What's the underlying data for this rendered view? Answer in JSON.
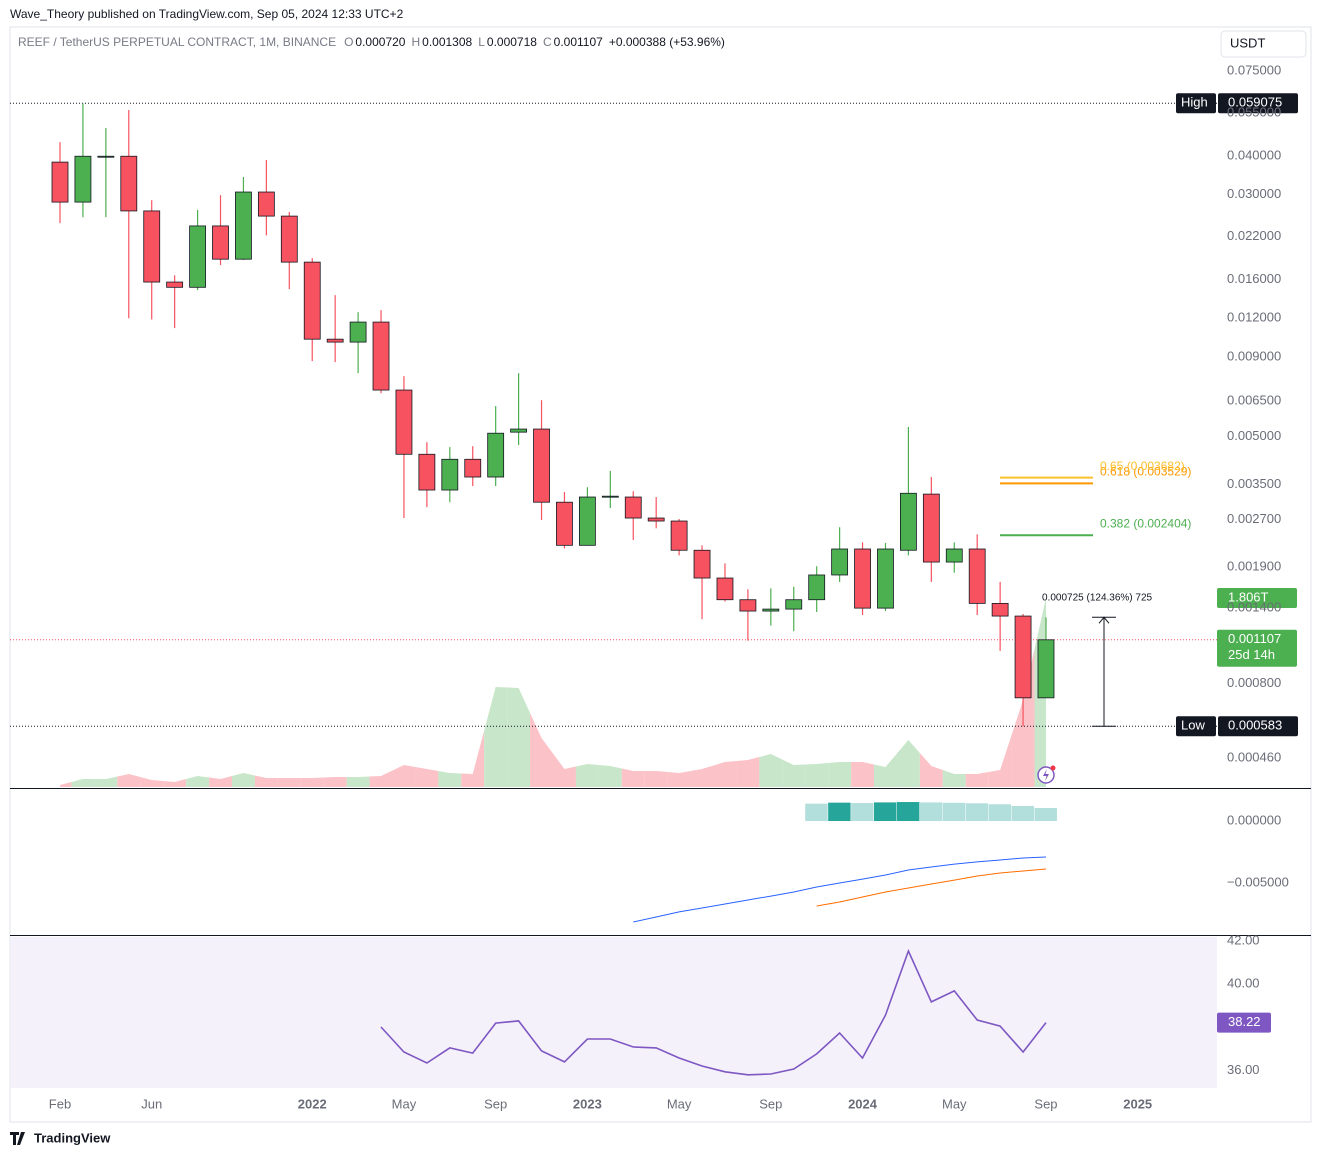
{
  "header": {
    "publisher": "Wave_Theory published on TradingView.com, Sep 05, 2024 12:33 UTC+2",
    "currency_button": "USDT",
    "footer_logo": "TradingView"
  },
  "chart_data": [
    {
      "type": "candlestick",
      "title": "REEF / TetherUS PERPETUAL CONTRACT, 1M, BINANCE",
      "legend_ohlc": [
        {
          "key": "O",
          "label": "0.000720"
        },
        {
          "key": "H",
          "label": "0.001308"
        },
        {
          "key": "L",
          "label": "0.000718"
        },
        {
          "key": "C",
          "label": "0.001107"
        }
      ],
      "legend_change": "+0.000388 (+53.96%)",
      "x": [
        "2021-02",
        "2021-03",
        "2021-04",
        "2021-05",
        "2021-06",
        "2021-07",
        "2021-08",
        "2021-09",
        "2021-10",
        "2021-11",
        "2021-12",
        "2022-01",
        "2022-02",
        "2022-03",
        "2022-04",
        "2022-05",
        "2022-06",
        "2022-07",
        "2022-08",
        "2022-09",
        "2022-10",
        "2022-11",
        "2022-12",
        "2023-01",
        "2023-02",
        "2023-03",
        "2023-04",
        "2023-05",
        "2023-06",
        "2023-07",
        "2023-08",
        "2023-09",
        "2023-10",
        "2023-11",
        "2023-12",
        "2024-01",
        "2024-02",
        "2024-03",
        "2024-04",
        "2024-05",
        "2024-06",
        "2024-07",
        "2024-08",
        "2024-09"
      ],
      "open": [
        0.0382,
        0.0284,
        0.0399,
        0.0399,
        0.0266,
        0.0157,
        0.0151,
        0.0238,
        0.0186,
        0.0306,
        0.0256,
        0.0182,
        0.01028,
        0.01006,
        0.01167,
        0.00705,
        0.00438,
        0.00336,
        0.00422,
        0.0037,
        0.00516,
        0.00528,
        0.00307,
        0.00223,
        0.00321,
        0.00319,
        0.00273,
        0.00267,
        0.00215,
        0.00175,
        0.00149,
        0.00137,
        0.00139,
        0.00149,
        0.00179,
        0.00217,
        0.0014,
        0.00215,
        0.00326,
        0.00197,
        0.00217,
        0.00145,
        0.00132,
        0.00072
      ],
      "high": [
        0.0443,
        0.059075,
        0.0492,
        0.0562,
        0.0288,
        0.0165,
        0.0268,
        0.0299,
        0.0342,
        0.0388,
        0.0264,
        0.01875,
        0.01425,
        0.01256,
        0.01275,
        0.00782,
        0.00479,
        0.00462,
        0.00465,
        0.00626,
        0.00799,
        0.00654,
        0.00331,
        0.00343,
        0.00387,
        0.00333,
        0.00319,
        0.00271,
        0.00223,
        0.00195,
        0.00161,
        0.00162,
        0.00164,
        0.00191,
        0.00255,
        0.00228,
        0.00227,
        0.00536,
        0.0037,
        0.00228,
        0.00242,
        0.0017,
        0.00134,
        0.001308
      ],
      "low": [
        0.0243,
        0.0254,
        0.0254,
        0.012,
        0.0119,
        0.01116,
        0.0148,
        0.0178,
        0.0185,
        0.0222,
        0.0149,
        0.00874,
        0.00867,
        0.00799,
        0.00689,
        0.00273,
        0.00296,
        0.00307,
        0.00346,
        0.00346,
        0.00469,
        0.00269,
        0.00218,
        0.00223,
        0.00294,
        0.00232,
        0.00253,
        0.00207,
        0.00129,
        0.00147,
        0.0011,
        0.00123,
        0.00118,
        0.00136,
        0.0017,
        0.00133,
        0.00137,
        0.00207,
        0.0017,
        0.00182,
        0.00133,
        0.00102,
        0.000583,
        0.000718
      ],
      "close": [
        0.0284,
        0.0399,
        0.0399,
        0.0266,
        0.0157,
        0.0151,
        0.0238,
        0.0186,
        0.0306,
        0.0256,
        0.0182,
        0.01028,
        0.01006,
        0.01167,
        0.00705,
        0.00438,
        0.00336,
        0.00422,
        0.0037,
        0.00512,
        0.00528,
        0.00307,
        0.00223,
        0.00319,
        0.00321,
        0.00273,
        0.00267,
        0.00215,
        0.00175,
        0.00149,
        0.00137,
        0.00139,
        0.00149,
        0.00179,
        0.00217,
        0.0014,
        0.00217,
        0.00328,
        0.00197,
        0.00217,
        0.00145,
        0.00132,
        0.00072,
        0.001107
      ],
      "colors": {
        "up": "#4caf50",
        "down": "#f7525f"
      },
      "log_scale": true,
      "ylim": [
        0.000369,
        0.104
      ],
      "yticks": [
        {
          "value": 0.075,
          "label": "0.075000"
        },
        {
          "value": 0.055,
          "label": "0.055000"
        },
        {
          "value": 0.04,
          "label": "0.040000"
        },
        {
          "value": 0.03,
          "label": "0.030000"
        },
        {
          "value": 0.022,
          "label": "0.022000"
        },
        {
          "value": 0.016,
          "label": "0.016000"
        },
        {
          "value": 0.012,
          "label": "0.012000"
        },
        {
          "value": 0.009,
          "label": "0.009000"
        },
        {
          "value": 0.0065,
          "label": "0.006500"
        },
        {
          "value": 0.005,
          "label": "0.005000"
        },
        {
          "value": 0.0035,
          "label": "0.003500"
        },
        {
          "value": 0.0027,
          "label": "0.002700"
        },
        {
          "value": 0.0019,
          "label": "0.001900"
        },
        {
          "value": 0.0014,
          "label": "0.001400"
        },
        {
          "value": 0.0008,
          "label": "0.000800"
        },
        {
          "value": 0.00046,
          "label": "0.000460"
        }
      ],
      "xticks": [
        {
          "value": "2021-02",
          "label": "Feb"
        },
        {
          "value": "2021-06",
          "label": "Jun"
        },
        {
          "value": "2022-01",
          "label": "2022"
        },
        {
          "value": "2022-05",
          "label": "May"
        },
        {
          "value": "2022-09",
          "label": "Sep"
        },
        {
          "value": "2023-01",
          "label": "2023"
        },
        {
          "value": "2023-05",
          "label": "May"
        },
        {
          "value": "2023-09",
          "label": "Sep"
        },
        {
          "value": "2024-01",
          "label": "2024"
        },
        {
          "value": "2024-05",
          "label": "May"
        },
        {
          "value": "2024-09",
          "label": "Sep"
        },
        {
          "value": "2025-01",
          "label": "2025"
        }
      ],
      "high_marker": {
        "label": "High",
        "value": 0.059075,
        "value_label": "0.059075"
      },
      "low_marker": {
        "label": "Low",
        "value": 0.000583,
        "value_label": "0.000583"
      },
      "last_price": {
        "value": 0.001107,
        "label": "0.001107",
        "countdown": "25d 14h",
        "color": "#4caf50"
      },
      "fib_levels": [
        {
          "label": "0.382 (0.002404)",
          "value": 0.002404,
          "color": "#4caf50"
        },
        {
          "label": "0.618 (0.003529)",
          "value": 0.003529,
          "color": "#ff9800"
        },
        {
          "label": "0.65 (0.003682)",
          "value": 0.003682,
          "color": "#fbc02d"
        }
      ],
      "measure": {
        "label": "0.000725 (124.36%) 725",
        "from": 0.000583,
        "to": 0.001308
      },
      "volume": {
        "values": [
          0.019,
          0.076,
          0.076,
          0.124,
          0.067,
          0.048,
          0.105,
          0.076,
          0.134,
          0.086,
          0.086,
          0.086,
          0.096,
          0.096,
          0.105,
          0.21,
          0.172,
          0.134,
          0.124,
          0.956,
          0.946,
          0.468,
          0.172,
          0.22,
          0.201,
          0.153,
          0.153,
          0.134,
          0.172,
          0.239,
          0.258,
          0.315,
          0.21,
          0.22,
          0.239,
          0.239,
          0.191,
          0.449,
          0.201,
          0.124,
          0.124,
          0.162,
          0.831,
          1.806
        ],
        "colors": {
          "up": "#c8e6c9",
          "down": "#fbc2c7"
        },
        "last_label": {
          "value": 1.806,
          "label": "1.806T"
        }
      }
    },
    {
      "type": "macd",
      "ylim": [
        -0.00919,
        0.0025
      ],
      "yticks": [
        {
          "value": 0,
          "label": "0.000000"
        },
        {
          "value": -0.005,
          "label": "−0.005000"
        }
      ],
      "macd": {
        "color": "#2962ff",
        "values": [
          null,
          null,
          null,
          null,
          null,
          null,
          null,
          null,
          null,
          null,
          null,
          null,
          null,
          null,
          null,
          null,
          null,
          null,
          null,
          null,
          null,
          null,
          null,
          null,
          null,
          -0.00814,
          -0.00774,
          -0.00733,
          -0.00701,
          -0.00669,
          -0.00637,
          -0.00605,
          -0.00572,
          -0.00532,
          -0.005,
          -0.00468,
          -0.00435,
          -0.00395,
          -0.00371,
          -0.00347,
          -0.0033,
          -0.00314,
          -0.00298,
          -0.0029
        ]
      },
      "signal": {
        "color": "#ff6d00",
        "values": [
          null,
          null,
          null,
          null,
          null,
          null,
          null,
          null,
          null,
          null,
          null,
          null,
          null,
          null,
          null,
          null,
          null,
          null,
          null,
          null,
          null,
          null,
          null,
          null,
          null,
          null,
          null,
          null,
          null,
          null,
          null,
          null,
          null,
          -0.00685,
          -0.00653,
          -0.00613,
          -0.00572,
          -0.0054,
          -0.00508,
          -0.00476,
          -0.00443,
          -0.00419,
          -0.00403,
          -0.00387
        ]
      },
      "histogram": {
        "values": [
          null,
          null,
          null,
          null,
          null,
          null,
          null,
          null,
          null,
          null,
          null,
          null,
          null,
          null,
          null,
          null,
          null,
          null,
          null,
          null,
          null,
          null,
          null,
          null,
          null,
          null,
          null,
          null,
          null,
          null,
          null,
          null,
          null,
          0.0014,
          0.00148,
          0.00145,
          0.0015,
          0.00153,
          0.0015,
          0.00147,
          0.00143,
          0.00135,
          0.00121,
          0.00105
        ],
        "colors": [
          null,
          null,
          null,
          null,
          null,
          null,
          null,
          null,
          null,
          null,
          null,
          null,
          null,
          null,
          null,
          null,
          null,
          null,
          null,
          null,
          null,
          null,
          null,
          null,
          null,
          null,
          null,
          null,
          null,
          null,
          null,
          null,
          null,
          "#b2dfdb",
          "#26a69a",
          "#b2dfdb",
          "#26a69a",
          "#26a69a",
          "#b2dfdb",
          "#b2dfdb",
          "#b2dfdb",
          "#b2dfdb",
          "#b2dfdb",
          "#b2dfdb"
        ]
      }
    },
    {
      "type": "line",
      "color": "#7e57c2",
      "band_color": "#f4f1fb",
      "ylim": [
        35.19,
        42.19
      ],
      "yticks": [
        {
          "value": 42,
          "label": "42.00"
        },
        {
          "value": 40,
          "label": "40.00"
        },
        {
          "value": 36,
          "label": "36.00"
        }
      ],
      "values": [
        null,
        null,
        null,
        null,
        null,
        null,
        null,
        null,
        null,
        null,
        null,
        null,
        null,
        null,
        38.02,
        36.86,
        36.35,
        37.05,
        36.81,
        38.2,
        38.3,
        36.91,
        36.4,
        37.46,
        37.46,
        37.09,
        37.05,
        36.58,
        36.21,
        35.94,
        35.8,
        35.84,
        36.07,
        36.77,
        37.74,
        36.58,
        38.57,
        41.54,
        39.18,
        39.69,
        38.34,
        38.06,
        36.86,
        38.22
      ],
      "last_label": {
        "value": 38.22,
        "label": "38.22"
      }
    }
  ]
}
